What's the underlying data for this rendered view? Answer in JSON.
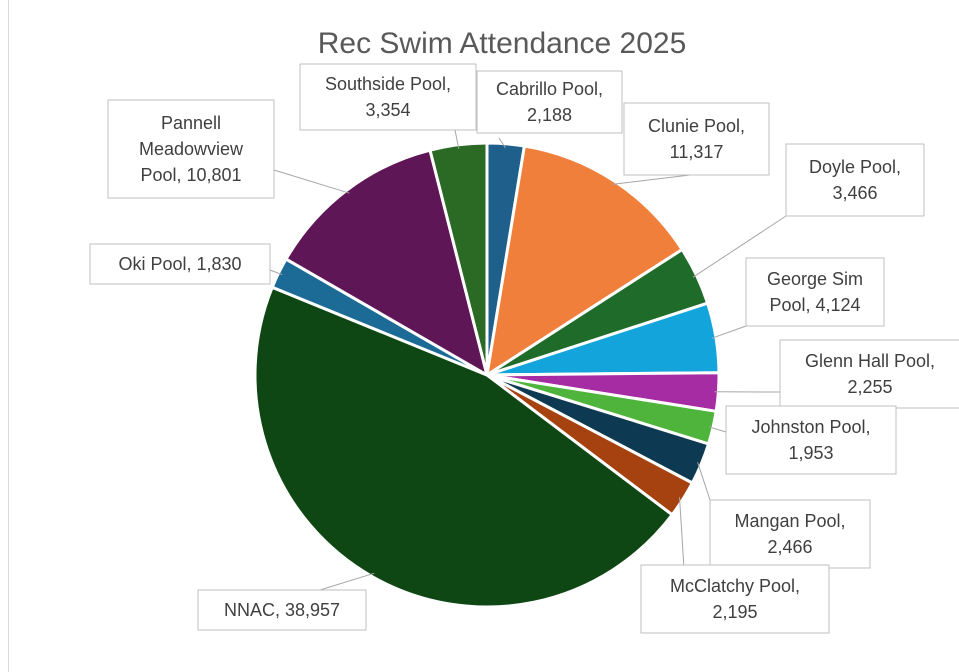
{
  "chart_data": {
    "type": "pie",
    "title": "Rec Swim Attendance 2025",
    "slices": [
      {
        "name": "Cabrillo Pool",
        "value": 2188,
        "value_label": "2,188",
        "color": "#1f5f8b"
      },
      {
        "name": "Clunie Pool",
        "value": 11317,
        "value_label": "11,317",
        "color": "#f07f3c"
      },
      {
        "name": "Doyle Pool",
        "value": 3466,
        "value_label": "3,466",
        "color": "#1f6b2a"
      },
      {
        "name": "George Sim Pool",
        "value": 4124,
        "value_label": "4,124",
        "color": "#14a4dc"
      },
      {
        "name": "Glenn Hall Pool",
        "value": 2255,
        "value_label": "2,255",
        "color": "#a62ca3"
      },
      {
        "name": "Johnston Pool",
        "value": 1953,
        "value_label": "1,953",
        "color": "#4fb43c"
      },
      {
        "name": "Mangan Pool",
        "value": 2466,
        "value_label": "2,466",
        "color": "#0d3a52"
      },
      {
        "name": "McClatchy Pool",
        "value": 2195,
        "value_label": "2,195",
        "color": "#a5420f"
      },
      {
        "name": "NNAC",
        "value": 38957,
        "value_label": "38,957",
        "color": "#0f4714"
      },
      {
        "name": "Oki Pool",
        "value": 1830,
        "value_label": "1,830",
        "color": "#1c6b96"
      },
      {
        "name": "Pannell Meadowview Pool",
        "value": 10801,
        "value_label": "10,801",
        "color": "#5e1656"
      },
      {
        "name": "Southside Pool",
        "value": 3354,
        "value_label": "3,354",
        "color": "#2b6a25"
      }
    ],
    "labels": [
      {
        "lines": [
          "Cabrillo Pool,",
          "2,188"
        ]
      },
      {
        "lines": [
          "Clunie Pool,",
          "11,317"
        ]
      },
      {
        "lines": [
          "Doyle Pool,",
          "3,466"
        ]
      },
      {
        "lines": [
          "George Sim",
          "Pool, 4,124"
        ]
      },
      {
        "lines": [
          "Glenn Hall Pool,",
          "2,255"
        ]
      },
      {
        "lines": [
          "Johnston Pool,",
          "1,953"
        ]
      },
      {
        "lines": [
          "Mangan Pool,",
          "2,466"
        ]
      },
      {
        "lines": [
          "McClatchy Pool,",
          "2,195"
        ]
      },
      {
        "lines": [
          "NNAC, 38,957"
        ]
      },
      {
        "lines": [
          "Oki Pool, 1,830"
        ]
      },
      {
        "lines": [
          "Pannell",
          "Meadowview",
          "Pool, 10,801"
        ]
      },
      {
        "lines": [
          "Southside Pool,",
          "3,354"
        ]
      }
    ]
  }
}
